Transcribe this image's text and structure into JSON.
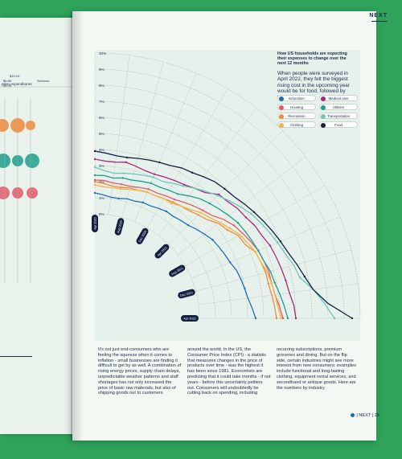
{
  "header": {
    "brand": "NEXT"
  },
  "info": {
    "title": "How US households are expecting their expenses to change over the next 12 months",
    "text": "When people were surveyed in April 2022, they felt the biggest rising cost in the upcoming year would be for food, followed by transportation."
  },
  "legend": [
    {
      "label": "Education",
      "color": "#1f6fb2"
    },
    {
      "label": "Medical care",
      "color": "#a6297a"
    },
    {
      "label": "Housing",
      "color": "#e25a6a"
    },
    {
      "label": "Utilities",
      "color": "#1e9d8c"
    },
    {
      "label": "Recreation",
      "color": "#f08a3c"
    },
    {
      "label": "Transportation",
      "color": "#6dc7b7"
    },
    {
      "label": "Clothing",
      "color": "#f2b43c"
    },
    {
      "label": "Food",
      "color": "#13203f"
    }
  ],
  "chart_data": {
    "type": "line",
    "y_ticks": [
      "0%",
      "1%",
      "2%",
      "3%",
      "4%",
      "5%",
      "6%",
      "7%",
      "8%",
      "9%",
      "10%"
    ],
    "x": [
      "Apr 2020",
      "May 2020",
      "Jun 2020",
      "Jul 2020",
      "Aug 2020",
      "Sep 2020",
      "Oct 2020",
      "Nov 2020",
      "Dec 2020",
      "Jan 2021",
      "Feb 2021",
      "Mar 2021",
      "Apr 2021",
      "May 2021",
      "Jun 2021",
      "Jul 2021",
      "Aug 2021",
      "Sep 2021",
      "Oct 2021",
      "Nov 2021",
      "Dec 2021",
      "Jan 2022",
      "Feb 2022",
      "Mar 2022",
      "Apr 2022"
    ],
    "x_labels": [
      "Apr 2020",
      "Aug 2020",
      "Dec 2020",
      "Apr 2021",
      "Aug 2021",
      "Dec 2021",
      "Apr 2022"
    ],
    "series": [
      {
        "name": "Education",
        "color": "#1f6fb2",
        "values": [
          1.3,
          1.2,
          1.1,
          1.1,
          1.2,
          1.2,
          1.3,
          1.3,
          1.4,
          1.5,
          1.5,
          1.6,
          1.7,
          1.9,
          2.1,
          2.3,
          2.4,
          2.5,
          2.6,
          2.8,
          2.9,
          3.0,
          3.1,
          3.3,
          3.5
        ]
      },
      {
        "name": "Medical care",
        "color": "#a6297a",
        "values": [
          3.4,
          3.3,
          3.3,
          3.4,
          3.3,
          3.2,
          3.2,
          3.3,
          3.4,
          3.5,
          3.7,
          3.9,
          4.4,
          4.5,
          4.7,
          4.8,
          5.0,
          5.1,
          5.3,
          5.4,
          5.5,
          5.6,
          5.7,
          5.9,
          6.0
        ]
      },
      {
        "name": "Housing",
        "color": "#e25a6a",
        "values": [
          2.1,
          2.1,
          2.0,
          2.0,
          2.0,
          2.1,
          2.2,
          2.2,
          2.3,
          2.4,
          2.6,
          2.8,
          3.0,
          3.2,
          3.6,
          3.9,
          4.1,
          4.3,
          4.5,
          4.6,
          4.7,
          4.7,
          4.8,
          5.0,
          5.2
        ]
      },
      {
        "name": "Utilities",
        "color": "#1e9d8c",
        "values": [
          2.4,
          2.4,
          2.3,
          2.4,
          2.4,
          2.5,
          2.6,
          2.6,
          2.7,
          2.8,
          3.1,
          3.4,
          3.6,
          3.8,
          4.0,
          4.2,
          4.3,
          4.4,
          4.5,
          4.6,
          4.8,
          4.9,
          5.1,
          5.3,
          5.5
        ]
      },
      {
        "name": "Recreation",
        "color": "#f08a3c",
        "values": [
          2.0,
          1.9,
          1.8,
          1.8,
          1.9,
          1.9,
          2.0,
          2.0,
          2.1,
          2.2,
          2.3,
          2.4,
          2.6,
          2.8,
          3.2,
          3.4,
          3.8,
          3.9,
          4.3,
          4.4,
          4.5,
          4.5,
          4.6,
          4.7,
          4.8
        ]
      },
      {
        "name": "Transportation",
        "color": "#6dc7b7",
        "values": [
          2.9,
          2.7,
          2.6,
          2.7,
          2.8,
          2.9,
          3.0,
          3.0,
          3.2,
          3.4,
          3.7,
          4.0,
          4.3,
          4.6,
          4.9,
          5.2,
          5.4,
          5.6,
          5.8,
          6.0,
          6.3,
          6.5,
          7.2,
          7.8,
          8.4
        ]
      },
      {
        "name": "Clothing",
        "color": "#f2b43c",
        "values": [
          1.8,
          1.7,
          1.7,
          1.7,
          1.8,
          1.9,
          2.0,
          2.0,
          2.1,
          2.1,
          2.3,
          2.5,
          2.8,
          3.0,
          3.3,
          3.6,
          3.9,
          4.1,
          4.3,
          4.4,
          4.6,
          4.7,
          4.8,
          4.9,
          5.1
        ]
      },
      {
        "name": "Food",
        "color": "#13203f",
        "values": [
          3.9,
          3.8,
          3.7,
          3.7,
          3.8,
          3.9,
          4.0,
          4.1,
          4.3,
          4.4,
          4.6,
          4.8,
          4.9,
          5.0,
          5.2,
          5.4,
          5.6,
          5.8,
          6.0,
          6.2,
          6.5,
          6.8,
          7.2,
          8.0,
          9.5
        ]
      }
    ]
  },
  "body_columns": [
    "It's not just end-consumers who are feeling the squeeze when it comes to inflation - small businesses are finding it difficult to get by as well. A combination of rising energy prices, supply chain delays, unpredictable weather patterns and staff shortages has not only increased the price of basic raw materials, but also of shipping goods out to customers",
    "around the world. In the US, the Consumer Price Index (CPI) - a statistic that measures changes in the price of products over time - was the highest it has been since 1981. Economists are predicting that it could take months - if not years - before this uncertainty pettiers out. Consumers will undoubtedly be cutting back on spending, including",
    "recurring subscriptions, premium groceries and dining. But on the flip side, certain industries might see more interest from new consumers: examples include functional and long-lasting clothing, equipment rental services, and secondhand or antique goods. Here are the numbers by industry."
  ],
  "footer": {
    "text": "| NEXT | 25"
  },
  "left_page": {
    "title": "ption expenditures",
    "labels": [
      "$10.1K",
      "$9.8K",
      "$8.9K",
      "Services"
    ]
  }
}
